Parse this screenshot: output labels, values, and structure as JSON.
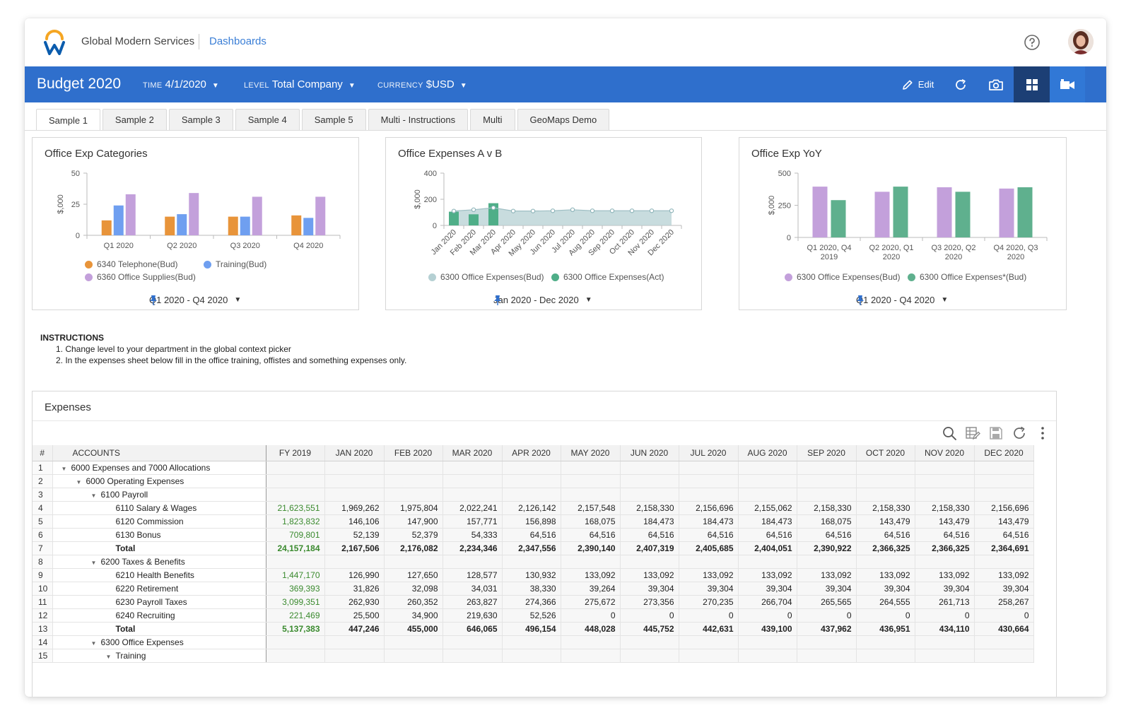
{
  "app": {
    "org_name": "Global Modern Services",
    "nav_link": "Dashboards"
  },
  "header": {
    "title": "Budget 2020",
    "time": {
      "label": "TIME",
      "value": "4/1/2020"
    },
    "level": {
      "label": "LEVEL",
      "value": "Total Company"
    },
    "currency": {
      "label": "CURRENCY",
      "value": "$USD"
    },
    "edit_label": "Edit"
  },
  "tabs": [
    {
      "label": "Sample 1",
      "active": true
    },
    {
      "label": "Sample 2"
    },
    {
      "label": "Sample 3"
    },
    {
      "label": "Sample 4"
    },
    {
      "label": "Sample 5"
    },
    {
      "label": "Multi - Instructions"
    },
    {
      "label": "Multi"
    },
    {
      "label": "GeoMaps Demo"
    }
  ],
  "chart_data": [
    {
      "type": "bar",
      "title": "Office Exp Categories",
      "ylabel": "$,000",
      "ylim": [
        0,
        50
      ],
      "yticks": [
        0,
        25,
        50
      ],
      "categories": [
        "Q1 2020",
        "Q2 2020",
        "Q3 2020",
        "Q4 2020"
      ],
      "series": [
        {
          "name": "6340 Telephone(Bud)",
          "color": "#e8943a",
          "values": [
            12,
            15,
            15,
            16
          ]
        },
        {
          "name": "Training(Bud)",
          "color": "#6f9ff0",
          "values": [
            24,
            17,
            15,
            14
          ]
        },
        {
          "name": "6360 Office Supplies(Bud)",
          "color": "#c3a0db",
          "values": [
            33,
            34,
            31,
            31
          ]
        }
      ],
      "range": "Q1 2020 - Q4 2020"
    },
    {
      "type": "bar+area",
      "title": "Office Expenses A v B",
      "ylabel": "$,000",
      "ylim": [
        0,
        400
      ],
      "yticks": [
        0,
        200,
        400
      ],
      "categories": [
        "Jan 2020",
        "Feb 2020",
        "Mar 2020",
        "Apr 2020",
        "May 2020",
        "Jun 2020",
        "Jul 2020",
        "Aug 2020",
        "Sep 2020",
        "Oct 2020",
        "Nov 2020",
        "Dec 2020"
      ],
      "series": [
        {
          "name": "6300 Office Expenses(Bud)",
          "color": "#b5d0d3",
          "kind": "area",
          "values": [
            110,
            120,
            135,
            110,
            110,
            112,
            120,
            112,
            112,
            112,
            112,
            112
          ]
        },
        {
          "name": "6300 Office Expenses(Act)",
          "color": "#4fae88",
          "kind": "bar",
          "values": [
            105,
            85,
            170,
            null,
            null,
            null,
            null,
            null,
            null,
            null,
            null,
            null
          ]
        }
      ],
      "range": "Jan 2020 - Dec 2020"
    },
    {
      "type": "bar",
      "title": "Office Exp YoY",
      "ylabel": "$,000",
      "ylim": [
        0,
        500
      ],
      "yticks": [
        0,
        250,
        500
      ],
      "categories": [
        [
          "Q1 2020, Q4",
          "2019"
        ],
        [
          "Q2 2020, Q1",
          "2020"
        ],
        [
          "Q3 2020, Q2",
          "2020"
        ],
        [
          "Q4 2020, Q3",
          "2020"
        ]
      ],
      "series": [
        {
          "name": "6300 Office Expenses(Bud)",
          "color": "#c3a0db",
          "values": [
            395,
            355,
            390,
            380
          ]
        },
        {
          "name": "6300 Office Expenses*(Bud)",
          "color": "#5fb08e",
          "values": [
            290,
            395,
            355,
            390
          ]
        }
      ],
      "range": "Q1 2020 - Q4 2020"
    }
  ],
  "instructions": {
    "heading": "INSTRUCTIONS",
    "steps": [
      "1. Change level to your department in the global context picker",
      "2. In the expenses sheet below fill  in the office training, offistes and something expenses only."
    ]
  },
  "expenses": {
    "title": "Expenses",
    "columns": [
      "#",
      "ACCOUNTS",
      "FY 2019",
      "JAN 2020",
      "FEB 2020",
      "MAR 2020",
      "APR 2020",
      "MAY 2020",
      "JUN 2020",
      "JUL 2020",
      "AUG 2020",
      "SEP 2020",
      "OCT 2020",
      "NOV 2020",
      "DEC 2020"
    ],
    "rows": [
      {
        "n": "1",
        "indent": 0,
        "toggle": true,
        "account": "6000 Expenses and 7000 Allocations",
        "values": []
      },
      {
        "n": "2",
        "indent": 1,
        "toggle": true,
        "account": "6000 Operating Expenses",
        "values": []
      },
      {
        "n": "3",
        "indent": 2,
        "toggle": true,
        "account": "6100 Payroll",
        "values": []
      },
      {
        "n": "4",
        "indent": 3,
        "account": "6110 Salary & Wages",
        "values": [
          "21,623,551",
          "1,969,262",
          "1,975,804",
          "2,022,241",
          "2,126,142",
          "2,157,548",
          "2,158,330",
          "2,156,696",
          "2,155,062",
          "2,158,330",
          "2,158,330",
          "2,158,330",
          "2,156,696"
        ]
      },
      {
        "n": "5",
        "indent": 3,
        "account": "6120 Commission",
        "values": [
          "1,823,832",
          "146,106",
          "147,900",
          "157,771",
          "156,898",
          "168,075",
          "184,473",
          "184,473",
          "184,473",
          "168,075",
          "143,479",
          "143,479",
          "143,479"
        ]
      },
      {
        "n": "6",
        "indent": 3,
        "account": "6130 Bonus",
        "values": [
          "709,801",
          "52,139",
          "52,379",
          "54,333",
          "64,516",
          "64,516",
          "64,516",
          "64,516",
          "64,516",
          "64,516",
          "64,516",
          "64,516",
          "64,516"
        ]
      },
      {
        "n": "7",
        "indent": 3,
        "total": true,
        "account": "Total",
        "values": [
          "24,157,184",
          "2,167,506",
          "2,176,082",
          "2,234,346",
          "2,347,556",
          "2,390,140",
          "2,407,319",
          "2,405,685",
          "2,404,051",
          "2,390,922",
          "2,366,325",
          "2,366,325",
          "2,364,691"
        ]
      },
      {
        "n": "8",
        "indent": 2,
        "toggle": true,
        "account": "6200 Taxes & Benefits",
        "values": []
      },
      {
        "n": "9",
        "indent": 3,
        "account": "6210 Health Benefits",
        "values": [
          "1,447,170",
          "126,990",
          "127,650",
          "128,577",
          "130,932",
          "133,092",
          "133,092",
          "133,092",
          "133,092",
          "133,092",
          "133,092",
          "133,092",
          "133,092"
        ]
      },
      {
        "n": "10",
        "indent": 3,
        "account": "6220 Retirement",
        "values": [
          "369,393",
          "31,826",
          "32,098",
          "34,031",
          "38,330",
          "39,264",
          "39,304",
          "39,304",
          "39,304",
          "39,304",
          "39,304",
          "39,304",
          "39,304"
        ]
      },
      {
        "n": "11",
        "indent": 3,
        "account": "6230 Payroll Taxes",
        "values": [
          "3,099,351",
          "262,930",
          "260,352",
          "263,827",
          "274,366",
          "275,672",
          "273,356",
          "270,235",
          "266,704",
          "265,565",
          "264,555",
          "261,713",
          "258,267"
        ]
      },
      {
        "n": "12",
        "indent": 3,
        "account": "6240 Recruiting",
        "values": [
          "221,469",
          "25,500",
          "34,900",
          "219,630",
          "52,526",
          "0",
          "0",
          "0",
          "0",
          "0",
          "0",
          "0",
          "0"
        ]
      },
      {
        "n": "13",
        "indent": 3,
        "total": true,
        "account": "Total",
        "values": [
          "5,137,383",
          "447,246",
          "455,000",
          "646,065",
          "496,154",
          "448,028",
          "445,752",
          "442,631",
          "439,100",
          "437,962",
          "436,951",
          "434,110",
          "430,664"
        ]
      },
      {
        "n": "14",
        "indent": 2,
        "toggle": true,
        "account": "6300 Office Expenses",
        "values": []
      },
      {
        "n": "15",
        "indent": 3,
        "toggle": true,
        "account": "Training",
        "values": []
      }
    ]
  }
}
